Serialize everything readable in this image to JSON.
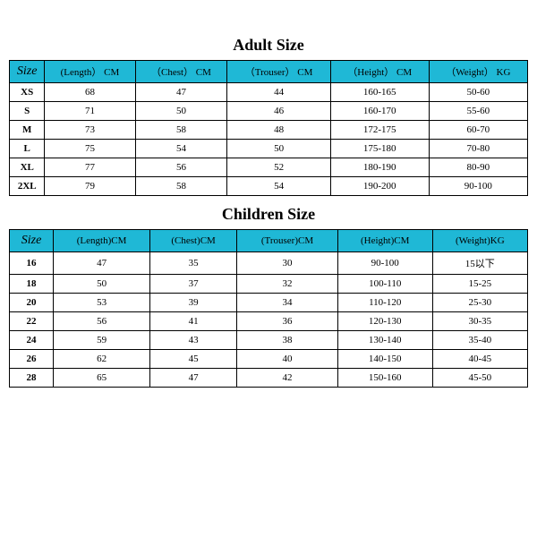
{
  "adult": {
    "title": "Adult Size",
    "title_fontsize": 18,
    "header_bg": "#1fb8d6",
    "header_color": "#000000",
    "border_color": "#000000",
    "columns": [
      "Size",
      "(Length） CM",
      "（Chest） CM",
      "（Trouser） CM",
      "（Height） CM",
      "（Weight） KG"
    ],
    "rows": [
      [
        "XS",
        "68",
        "47",
        "44",
        "160-165",
        "50-60"
      ],
      [
        "S",
        "71",
        "50",
        "46",
        "160-170",
        "55-60"
      ],
      [
        "M",
        "73",
        "58",
        "48",
        "172-175",
        "60-70"
      ],
      [
        "L",
        "75",
        "54",
        "50",
        "175-180",
        "70-80"
      ],
      [
        "XL",
        "77",
        "56",
        "52",
        "180-190",
        "80-90"
      ],
      [
        "2XL",
        "79",
        "58",
        "54",
        "190-200",
        "90-100"
      ]
    ]
  },
  "children": {
    "title": "Children Size",
    "title_fontsize": 18,
    "header_bg": "#1fb8d6",
    "header_color": "#000000",
    "border_color": "#000000",
    "columns": [
      "Size",
      "(Length)CM",
      "(Chest)CM",
      "(Trouser)CM",
      "(Height)CM",
      "(Weight)KG"
    ],
    "rows": [
      [
        "16",
        "47",
        "35",
        "30",
        "90-100",
        "15以下"
      ],
      [
        "18",
        "50",
        "37",
        "32",
        "100-110",
        "15-25"
      ],
      [
        "20",
        "53",
        "39",
        "34",
        "110-120",
        "25-30"
      ],
      [
        "22",
        "56",
        "41",
        "36",
        "120-130",
        "30-35"
      ],
      [
        "24",
        "59",
        "43",
        "38",
        "130-140",
        "35-40"
      ],
      [
        "26",
        "62",
        "45",
        "40",
        "140-150",
        "40-45"
      ],
      [
        "28",
        "65",
        "47",
        "42",
        "150-160",
        "45-50"
      ]
    ]
  }
}
